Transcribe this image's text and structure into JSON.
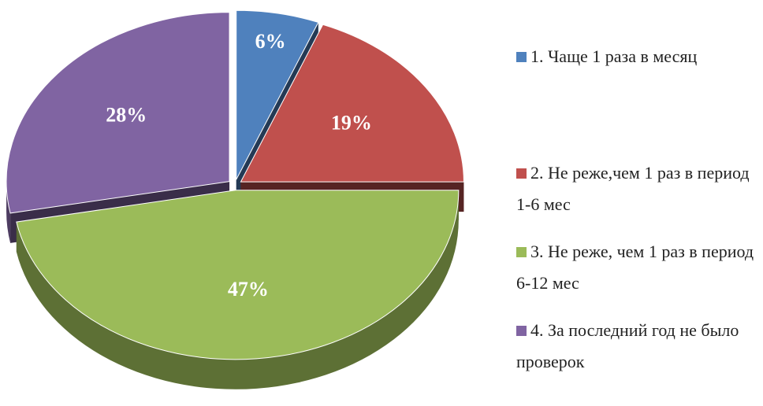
{
  "chart_data": {
    "type": "pie",
    "categories": [
      "1. Чаще 1 раза в месяц",
      "2. Не реже,чем 1 раз в период 1-6 мес",
      "3. Не реже, чем 1 раз в период 6-12 мес",
      "4. За последний год не было проверок"
    ],
    "values": [
      6,
      19,
      47,
      28
    ],
    "value_labels": [
      "6%",
      "19%",
      "47%",
      "28%"
    ],
    "colors": [
      "#4f81bd",
      "#c0504d",
      "#9bbb59",
      "#8064a2"
    ],
    "legend": "right"
  }
}
